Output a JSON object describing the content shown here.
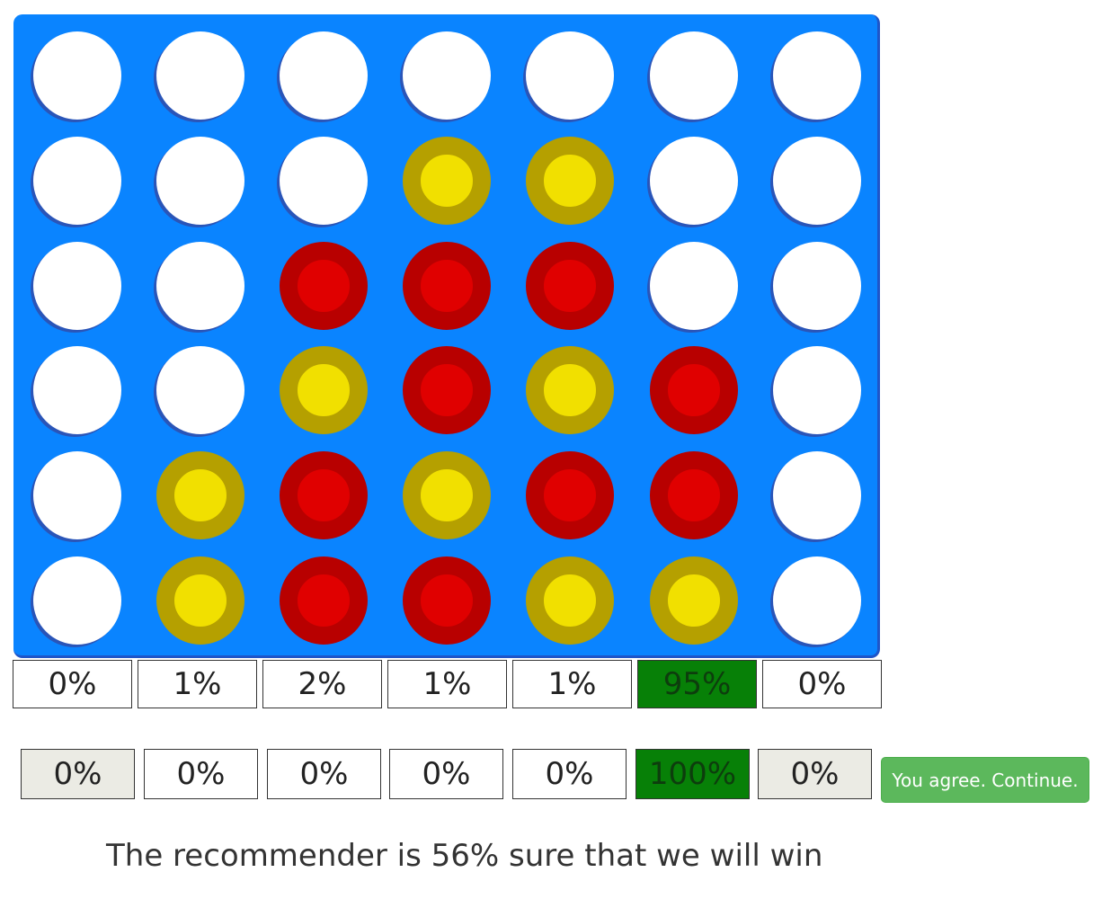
{
  "board": {
    "columns": 7,
    "rows": 6,
    "colors": {
      "board": "#0a84ff",
      "empty": "#ffffff",
      "red_inner": "#e00000",
      "red_ring": "#b80000",
      "yellow_inner": "#f1e000",
      "yellow_ring": "#b5a000"
    },
    "cells": [
      [
        "empty",
        "empty",
        "empty",
        "empty",
        "empty",
        "empty",
        "empty"
      ],
      [
        "empty",
        "empty",
        "empty",
        "yellow",
        "yellow",
        "empty",
        "empty"
      ],
      [
        "empty",
        "empty",
        "red",
        "red",
        "red",
        "empty",
        "empty"
      ],
      [
        "empty",
        "empty",
        "yellow",
        "red",
        "yellow",
        "red",
        "empty"
      ],
      [
        "empty",
        "yellow",
        "red",
        "yellow",
        "red",
        "red",
        "empty"
      ],
      [
        "empty",
        "yellow",
        "red",
        "red",
        "yellow",
        "yellow",
        "empty"
      ]
    ]
  },
  "recommendations": {
    "row1": [
      "0%",
      "1%",
      "2%",
      "1%",
      "1%",
      "95%",
      "0%"
    ],
    "row1_best_index": 5,
    "row2": [
      "0%",
      "0%",
      "0%",
      "0%",
      "0%",
      "100%",
      "0%"
    ],
    "row2_best_index": 5,
    "row2_grey_indices": [
      0,
      6
    ],
    "highlight_color": "#078007"
  },
  "continue_button": {
    "label": "You agree. Continue."
  },
  "status": {
    "text": "The recommender is 56% sure that we will win"
  }
}
